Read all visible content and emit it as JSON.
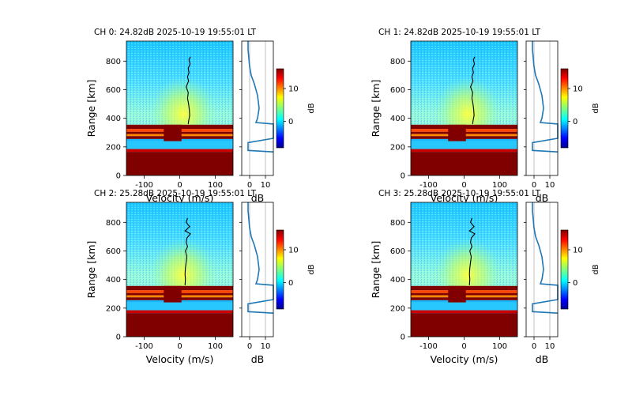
{
  "figure": {
    "panels": [
      {
        "title": "CH 0: 24.82dB 2025-10-19 19:55:01 LT"
      },
      {
        "title": "CH 1: 24.82dB 2025-10-19 19:55:01 LT"
      },
      {
        "title": "CH 2: 25.28dB 2025-10-19 19:55:01 LT"
      },
      {
        "title": "CH 3: 25.28dB 2025-10-19 19:55:01 LT"
      }
    ],
    "colormap": "jet",
    "colors": {
      "line": "#1f77b4",
      "doppler_line": "#000000",
      "saturated": "#800000"
    }
  },
  "chart_data": [
    {
      "type": "heatmap",
      "title": "CH 0: 24.82dB 2025-10-19 19:55:01 LT",
      "xlabel": "Velocity (m/s)",
      "ylabel": "Range [km]",
      "xlim": [
        -150,
        150
      ],
      "ylim": [
        0,
        940
      ],
      "xticks": [
        "-100",
        "0",
        "100"
      ],
      "yticks": [
        "0",
        "200",
        "400",
        "600",
        "800"
      ],
      "profile": {
        "type": "line",
        "xlabel": "dB",
        "xticks": [
          "0",
          "10"
        ],
        "xlim": [
          -5,
          15
        ],
        "points": [
          [
            -1,
            940
          ],
          [
            -1,
            880
          ],
          [
            0,
            760
          ],
          [
            1,
            700
          ],
          [
            3,
            640
          ],
          [
            5,
            560
          ],
          [
            6,
            470
          ],
          [
            5,
            400
          ],
          [
            4,
            370
          ],
          [
            15,
            360
          ],
          [
            15,
            260
          ],
          [
            -1,
            230
          ],
          [
            -1,
            175
          ],
          [
            15,
            165
          ]
        ]
      },
      "colorbar": {
        "label": "dB",
        "ticks": [
          "0",
          "10"
        ],
        "range": [
          -8,
          16
        ]
      },
      "doppler": [
        [
          30,
          830
        ],
        [
          26,
          810
        ],
        [
          29,
          780
        ],
        [
          24,
          750
        ],
        [
          26,
          720
        ],
        [
          22,
          690
        ],
        [
          25,
          660
        ],
        [
          18,
          620
        ],
        [
          24,
          580
        ],
        [
          22,
          540
        ],
        [
          25,
          500
        ],
        [
          27,
          460
        ],
        [
          28,
          420
        ],
        [
          25,
          380
        ],
        [
          24,
          360
        ]
      ]
    },
    {
      "type": "heatmap",
      "title": "CH 1: 24.82dB 2025-10-19 19:55:01 LT",
      "xlabel": "Velocity (m/s)",
      "ylabel": "Range [km]",
      "xlim": [
        -150,
        150
      ],
      "ylim": [
        0,
        940
      ],
      "xticks": [
        "-100",
        "0",
        "100"
      ],
      "yticks": [
        "0",
        "200",
        "400",
        "600",
        "800"
      ],
      "profile": {
        "type": "line",
        "xlabel": "dB",
        "xticks": [
          "0",
          "10"
        ],
        "xlim": [
          -5,
          15
        ],
        "points": [
          [
            -1,
            940
          ],
          [
            -1,
            880
          ],
          [
            0,
            760
          ],
          [
            1,
            700
          ],
          [
            3,
            640
          ],
          [
            5,
            560
          ],
          [
            6,
            470
          ],
          [
            5,
            400
          ],
          [
            4,
            370
          ],
          [
            15,
            360
          ],
          [
            15,
            260
          ],
          [
            -1,
            230
          ],
          [
            -1,
            175
          ],
          [
            15,
            165
          ]
        ]
      },
      "colorbar": {
        "label": "dB",
        "ticks": [
          "0",
          "10"
        ],
        "range": [
          -8,
          16
        ]
      },
      "doppler": [
        [
          30,
          830
        ],
        [
          26,
          810
        ],
        [
          29,
          780
        ],
        [
          24,
          750
        ],
        [
          26,
          720
        ],
        [
          22,
          690
        ],
        [
          25,
          660
        ],
        [
          18,
          620
        ],
        [
          24,
          580
        ],
        [
          22,
          540
        ],
        [
          25,
          500
        ],
        [
          27,
          460
        ],
        [
          28,
          420
        ],
        [
          25,
          380
        ],
        [
          24,
          360
        ]
      ]
    },
    {
      "type": "heatmap",
      "title": "CH 2: 25.28dB 2025-10-19 19:55:01 LT",
      "xlabel": "Velocity (m/s)",
      "ylabel": "Range [km]",
      "xlim": [
        -150,
        150
      ],
      "ylim": [
        0,
        940
      ],
      "xticks": [
        "-100",
        "0",
        "100"
      ],
      "yticks": [
        "0",
        "200",
        "400",
        "600",
        "800"
      ],
      "profile": {
        "type": "line",
        "xlabel": "dB",
        "xticks": [
          "0",
          "10"
        ],
        "xlim": [
          -5,
          15
        ],
        "points": [
          [
            -1,
            940
          ],
          [
            -1,
            880
          ],
          [
            0,
            760
          ],
          [
            1,
            700
          ],
          [
            3,
            640
          ],
          [
            5,
            560
          ],
          [
            6,
            470
          ],
          [
            5,
            400
          ],
          [
            4,
            370
          ],
          [
            15,
            360
          ],
          [
            15,
            260
          ],
          [
            -1,
            230
          ],
          [
            -1,
            175
          ],
          [
            15,
            165
          ]
        ]
      },
      "colorbar": {
        "label": "dB",
        "ticks": [
          "0",
          "10"
        ],
        "range": [
          -8,
          16
        ]
      },
      "doppler": [
        [
          22,
          830
        ],
        [
          18,
          800
        ],
        [
          28,
          770
        ],
        [
          15,
          740
        ],
        [
          30,
          720
        ],
        [
          20,
          690
        ],
        [
          18,
          660
        ],
        [
          22,
          630
        ],
        [
          16,
          600
        ],
        [
          20,
          560
        ],
        [
          18,
          520
        ],
        [
          16,
          480
        ],
        [
          15,
          440
        ],
        [
          16,
          400
        ],
        [
          15,
          360
        ]
      ]
    },
    {
      "type": "heatmap",
      "title": "CH 3: 25.28dB 2025-10-19 19:55:01 LT",
      "xlabel": "Velocity (m/s)",
      "ylabel": "Range [km]",
      "xlim": [
        -150,
        150
      ],
      "ylim": [
        0,
        940
      ],
      "xticks": [
        "-100",
        "0",
        "100"
      ],
      "yticks": [
        "0",
        "200",
        "400",
        "600",
        "800"
      ],
      "profile": {
        "type": "line",
        "xlabel": "dB",
        "xticks": [
          "0",
          "10"
        ],
        "xlim": [
          -5,
          15
        ],
        "points": [
          [
            -1,
            940
          ],
          [
            -1,
            880
          ],
          [
            0,
            760
          ],
          [
            1,
            700
          ],
          [
            3,
            640
          ],
          [
            5,
            560
          ],
          [
            6,
            470
          ],
          [
            5,
            400
          ],
          [
            4,
            370
          ],
          [
            15,
            360
          ],
          [
            15,
            260
          ],
          [
            -1,
            230
          ],
          [
            -1,
            175
          ],
          [
            15,
            165
          ]
        ]
      },
      "colorbar": {
        "label": "dB",
        "ticks": [
          "0",
          "10"
        ],
        "range": [
          -8,
          16
        ]
      },
      "doppler": [
        [
          22,
          830
        ],
        [
          18,
          800
        ],
        [
          28,
          770
        ],
        [
          15,
          740
        ],
        [
          30,
          720
        ],
        [
          20,
          690
        ],
        [
          18,
          660
        ],
        [
          22,
          630
        ],
        [
          16,
          600
        ],
        [
          20,
          560
        ],
        [
          18,
          520
        ],
        [
          16,
          480
        ],
        [
          15,
          440
        ],
        [
          16,
          400
        ],
        [
          15,
          360
        ]
      ]
    }
  ]
}
